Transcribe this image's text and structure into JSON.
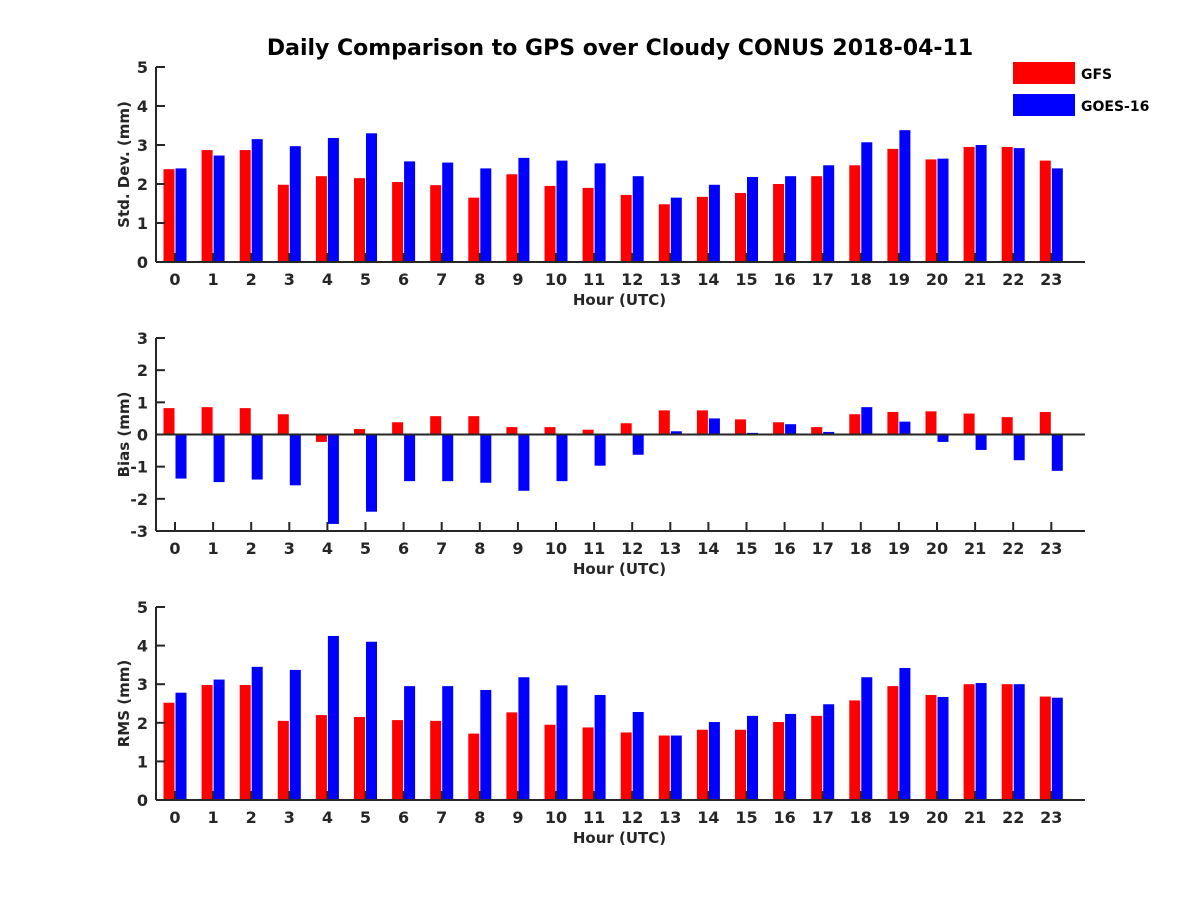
{
  "title": "Daily Comparison to GPS over Cloudy CONUS 2018-04-11",
  "legend": {
    "placement": "top-right",
    "items": [
      {
        "label": "GFS",
        "color": "#ff0000"
      },
      {
        "label": "GOES-16",
        "color": "#0000ff"
      }
    ]
  },
  "chart_data": [
    {
      "type": "bar",
      "ylabel": "Std. Dev. (mm)",
      "xlabel": "Hour (UTC)",
      "ylim": [
        0,
        5
      ],
      "yticks": [
        0,
        1,
        2,
        3,
        4,
        5
      ],
      "categories": [
        "0",
        "1",
        "2",
        "3",
        "4",
        "5",
        "6",
        "7",
        "8",
        "9",
        "10",
        "11",
        "12",
        "13",
        "14",
        "15",
        "16",
        "17",
        "18",
        "19",
        "20",
        "21",
        "22",
        "23"
      ],
      "series": [
        {
          "name": "GFS",
          "color": "#ff0000",
          "values": [
            2.38,
            2.87,
            2.87,
            1.98,
            2.2,
            2.15,
            2.05,
            1.97,
            1.65,
            2.25,
            1.95,
            1.9,
            1.72,
            1.48,
            1.67,
            1.77,
            2.0,
            2.2,
            2.48,
            2.9,
            2.63,
            2.95,
            2.95,
            2.6
          ]
        },
        {
          "name": "GOES-16",
          "color": "#0000ff",
          "values": [
            2.4,
            2.73,
            3.15,
            2.97,
            3.18,
            3.3,
            2.58,
            2.55,
            2.4,
            2.67,
            2.6,
            2.53,
            2.2,
            1.65,
            1.98,
            2.18,
            2.2,
            2.48,
            3.07,
            3.38,
            2.65,
            3.0,
            2.92,
            2.4
          ]
        }
      ]
    },
    {
      "type": "bar",
      "ylabel": "Bias (mm)",
      "xlabel": "Hour (UTC)",
      "ylim": [
        -3,
        3
      ],
      "yticks": [
        -3,
        -2,
        -1,
        0,
        1,
        2,
        3
      ],
      "categories": [
        "0",
        "1",
        "2",
        "3",
        "4",
        "5",
        "6",
        "7",
        "8",
        "9",
        "10",
        "11",
        "12",
        "13",
        "14",
        "15",
        "16",
        "17",
        "18",
        "19",
        "20",
        "21",
        "22",
        "23"
      ],
      "series": [
        {
          "name": "GFS",
          "color": "#ff0000",
          "values": [
            0.82,
            0.85,
            0.82,
            0.63,
            -0.23,
            0.17,
            0.38,
            0.57,
            0.57,
            0.23,
            0.23,
            0.15,
            0.35,
            0.75,
            0.75,
            0.47,
            0.38,
            0.23,
            0.63,
            0.7,
            0.72,
            0.65,
            0.54,
            0.7
          ]
        },
        {
          "name": "GOES-16",
          "color": "#0000ff",
          "values": [
            -1.37,
            -1.48,
            -1.4,
            -1.58,
            -2.78,
            -2.4,
            -1.45,
            -1.45,
            -1.5,
            -1.75,
            -1.45,
            -0.97,
            -0.63,
            0.1,
            0.5,
            0.05,
            0.32,
            0.08,
            0.85,
            0.4,
            -0.23,
            -0.48,
            -0.8,
            -1.13
          ]
        }
      ]
    },
    {
      "type": "bar",
      "ylabel": "RMS (mm)",
      "xlabel": "Hour (UTC)",
      "ylim": [
        0,
        5
      ],
      "yticks": [
        0,
        1,
        2,
        3,
        4,
        5
      ],
      "categories": [
        "0",
        "1",
        "2",
        "3",
        "4",
        "5",
        "6",
        "7",
        "8",
        "9",
        "10",
        "11",
        "12",
        "13",
        "14",
        "15",
        "16",
        "17",
        "18",
        "19",
        "20",
        "21",
        "22",
        "23"
      ],
      "series": [
        {
          "name": "GFS",
          "color": "#ff0000",
          "values": [
            2.52,
            2.98,
            2.98,
            2.05,
            2.2,
            2.15,
            2.07,
            2.05,
            1.72,
            2.27,
            1.95,
            1.88,
            1.75,
            1.67,
            1.82,
            1.82,
            2.02,
            2.18,
            2.58,
            2.95,
            2.72,
            3.0,
            3.0,
            2.68
          ]
        },
        {
          "name": "GOES-16",
          "color": "#0000ff",
          "values": [
            2.78,
            3.12,
            3.45,
            3.37,
            4.25,
            4.1,
            2.95,
            2.95,
            2.85,
            3.18,
            2.97,
            2.72,
            2.28,
            1.67,
            2.02,
            2.18,
            2.23,
            2.48,
            3.18,
            3.42,
            2.67,
            3.03,
            3.0,
            2.65
          ]
        }
      ]
    }
  ]
}
